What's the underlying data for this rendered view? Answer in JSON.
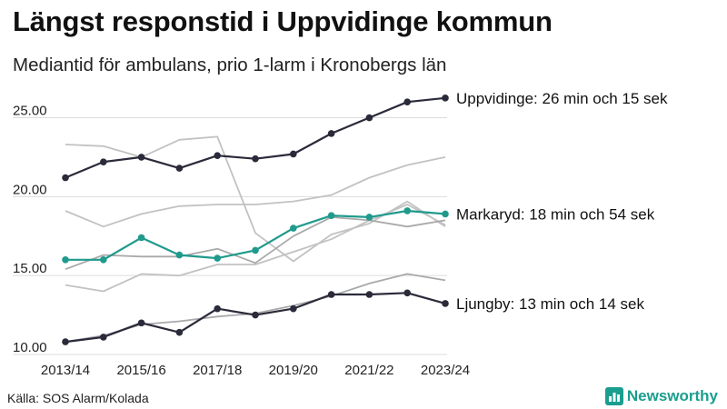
{
  "title": "Längst responstid i Uppvidinge kommun",
  "subtitle": "Mediantid för ambulans, prio 1-larm i Kronobergs län",
  "source": "Källa: SOS Alarm/Kolada",
  "brand": "Newsworthy",
  "colors": {
    "highlight": "#2a2a3a",
    "teal": "#1f9a8c",
    "grey": "#c2c2c2",
    "grey_dark": "#a9a9a9",
    "grid": "#dcdcdc",
    "brand": "#1a9e8f"
  },
  "chart_data": {
    "type": "line",
    "categories": [
      "2013/14",
      "2014/15",
      "2015/16",
      "2016/17",
      "2017/18",
      "2018/19",
      "2019/20",
      "2020/21",
      "2021/22",
      "2022/23",
      "2023/24"
    ],
    "x_tick_labels": [
      "2013/14",
      "2015/16",
      "2017/18",
      "2019/20",
      "2021/22",
      "2023/24"
    ],
    "y_ticks": [
      10,
      15,
      20,
      25
    ],
    "y_tick_labels": [
      "10.00",
      "15.00",
      "20.00",
      "25.00"
    ],
    "ylim": [
      10,
      26.7
    ],
    "grid": true,
    "series": [
      {
        "name": "",
        "style": "grey",
        "values": [
          23.3,
          23.2,
          22.5,
          23.6,
          23.8,
          17.7,
          15.9,
          17.6,
          18.3,
          19.7,
          18.1
        ]
      },
      {
        "name": "",
        "style": "grey",
        "values": [
          19.1,
          18.1,
          18.9,
          19.4,
          19.5,
          19.5,
          19.7,
          20.1,
          21.2,
          22.0,
          22.5
        ]
      },
      {
        "name": "",
        "style": "grey",
        "values": [
          14.4,
          14.0,
          15.1,
          15.0,
          15.7,
          15.7,
          16.5,
          17.3,
          18.5,
          19.5,
          18.2
        ]
      },
      {
        "name": "",
        "style": "grey_dark",
        "values": [
          15.4,
          16.3,
          16.2,
          16.2,
          16.7,
          15.8,
          17.5,
          18.7,
          18.5,
          18.1,
          18.5
        ]
      },
      {
        "name": "",
        "style": "grey_dark",
        "values": [
          10.8,
          11.2,
          11.9,
          12.1,
          12.4,
          12.6,
          13.1,
          13.7,
          14.5,
          15.1,
          14.7
        ]
      },
      {
        "name": "Uppvidinge: 26 min och 15 sek",
        "style": "highlight",
        "values": [
          21.2,
          22.2,
          22.5,
          21.8,
          22.6,
          22.4,
          22.7,
          24.0,
          25.0,
          26.0,
          26.25
        ]
      },
      {
        "name": "Markaryd: 18 min och 54 sek",
        "style": "teal",
        "values": [
          16.0,
          16.0,
          17.4,
          16.3,
          16.1,
          16.6,
          18.0,
          18.8,
          18.7,
          19.1,
          18.9
        ]
      },
      {
        "name": "Ljungby: 13 min och 14 sek",
        "style": "highlight",
        "values": [
          10.8,
          11.1,
          12.0,
          11.4,
          12.9,
          12.5,
          12.9,
          13.8,
          13.8,
          13.9,
          13.23
        ]
      }
    ]
  }
}
